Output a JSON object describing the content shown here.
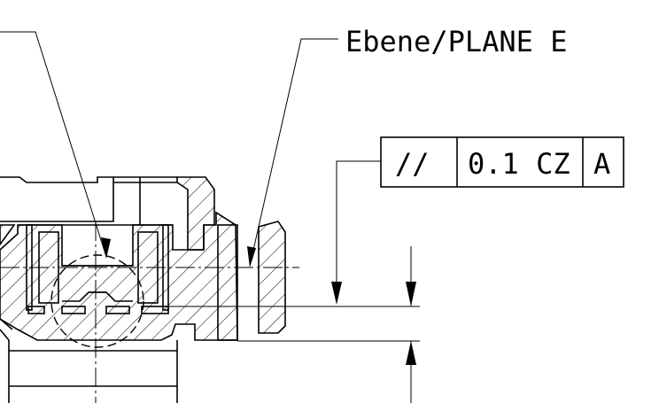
{
  "drawing": {
    "plane_label": "Ebene/PLANE E",
    "fcf": {
      "symbol": "//",
      "tolerance": "0.1 CZ",
      "datum": "A"
    }
  },
  "colors": {
    "line": "#000000",
    "background": "#ffffff"
  }
}
